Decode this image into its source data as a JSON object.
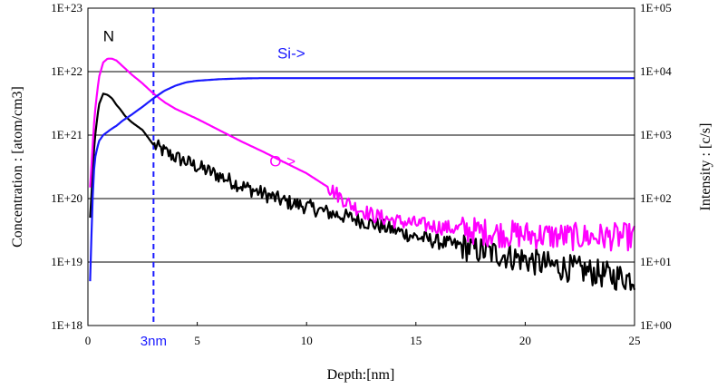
{
  "chart_data": {
    "type": "line",
    "title": "",
    "xlabel": "Depth:[nm]",
    "ylabel_left": "Concentration : [atom/cm3]",
    "ylabel_right": "Intensity : [c/s]",
    "x_range": [
      0,
      25
    ],
    "x_ticks": [
      "0",
      "5",
      "10",
      "15",
      "20",
      "25"
    ],
    "y_left_range": [
      1e+18,
      1e+23
    ],
    "y_left_scale": "log",
    "y_left_ticks": [
      "1E+18",
      "1E+19",
      "1E+20",
      "1E+21",
      "1E+22",
      "1E+23"
    ],
    "y_right_range": [
      1,
      100000
    ],
    "y_right_scale": "log",
    "y_right_ticks": [
      "1E+00",
      "1E+01",
      "1E+02",
      "1E+03",
      "1E+04",
      "1E+05"
    ],
    "grid": "horizontal",
    "legend": "none",
    "marker": {
      "x": 3,
      "label": "3nm",
      "color": "#1a1aff",
      "style": "dashed"
    },
    "series": [
      {
        "name": "N",
        "axis": "left",
        "color": "#000000",
        "noisy_after": 3,
        "x": [
          0.1,
          0.3,
          0.5,
          0.7,
          0.9,
          1.1,
          1.3,
          1.5,
          1.7,
          2.0,
          2.5,
          3.0,
          3.5,
          4.0,
          5.0,
          6.0,
          7.0,
          8.0,
          9.0,
          10.0,
          11.0,
          12.0,
          13.0,
          14.0,
          15.0,
          16.0,
          17.0,
          18.0,
          19.0,
          20.0,
          21.0,
          22.0,
          23.0,
          24.0,
          25.0
        ],
        "y": [
          5e+19,
          8e+20,
          3e+21,
          4.5e+21,
          4.3e+21,
          3.8e+21,
          3e+21,
          2.5e+21,
          2e+21,
          1.6e+21,
          1.2e+21,
          7e+20,
          5.5e+20,
          4.5e+20,
          3.2e+20,
          2.3e+20,
          1.6e+20,
          1.2e+20,
          9e+19,
          7.5e+19,
          6e+19,
          5e+19,
          4e+19,
          3.2e+19,
          2.5e+19,
          2.1e+19,
          1.8e+19,
          1.5e+19,
          1.3e+19,
          1.1e+19,
          9e+18,
          8e+18,
          7e+18,
          6e+18,
          5.5e+18
        ]
      },
      {
        "name": "O->",
        "axis": "left",
        "color": "#ff00ff",
        "noisy_after": 11,
        "x": [
          0.1,
          0.3,
          0.5,
          0.7,
          0.9,
          1.1,
          1.3,
          1.5,
          2.0,
          2.5,
          3.0,
          3.5,
          4.0,
          5.0,
          6.0,
          7.0,
          8.0,
          9.0,
          10.0,
          11.0,
          12.0,
          13.0,
          14.0,
          15.0,
          16.0,
          17.0,
          18.0,
          19.0,
          20.0,
          21.0,
          22.0,
          23.0,
          24.0,
          25.0
        ],
        "y": [
          1.5e+20,
          2e+21,
          8e+21,
          1.4e+22,
          1.6e+22,
          1.6e+22,
          1.5e+22,
          1.3e+22,
          9e+21,
          6.5e+21,
          4.5e+21,
          3.3e+21,
          2.6e+21,
          1.8e+21,
          1.2e+21,
          8e+20,
          5.5e+20,
          3.7e+20,
          2.5e+20,
          1.5e+20,
          8e+19,
          5.5e+19,
          4.5e+19,
          4e+19,
          3.6e+19,
          3.3e+19,
          3e+19,
          2.8e+19,
          2.7e+19,
          2.6e+19,
          2.5e+19,
          2.5e+19,
          2.5e+19,
          2.5e+19
        ]
      },
      {
        "name": "Si->",
        "axis": "right",
        "color": "#1a1aff",
        "noisy_after": 99,
        "x": [
          0.1,
          0.2,
          0.3,
          0.5,
          0.7,
          1.0,
          1.3,
          1.6,
          2.0,
          2.5,
          3.0,
          3.5,
          4.0,
          4.5,
          5.0,
          6.0,
          7.0,
          8.0,
          10.0,
          15.0,
          20.0,
          25.0
        ],
        "y": [
          5,
          80,
          400,
          800,
          1000,
          1200,
          1400,
          1700,
          2100,
          2800,
          3800,
          5000,
          6000,
          6800,
          7200,
          7600,
          7800,
          7900,
          7900,
          7900,
          7900,
          7900
        ]
      }
    ],
    "annotations": [
      {
        "text": "N",
        "x": 0.95,
        "y": 3e+22,
        "axis": "left",
        "color": "#000000"
      },
      {
        "text": "Si->",
        "x": 9.3,
        "y": 16000.0,
        "axis": "right",
        "color": "#1a1aff"
      },
      {
        "text": "O->",
        "x": 8.9,
        "y": 320,
        "axis": "right",
        "color": "#ff00ff"
      }
    ]
  }
}
